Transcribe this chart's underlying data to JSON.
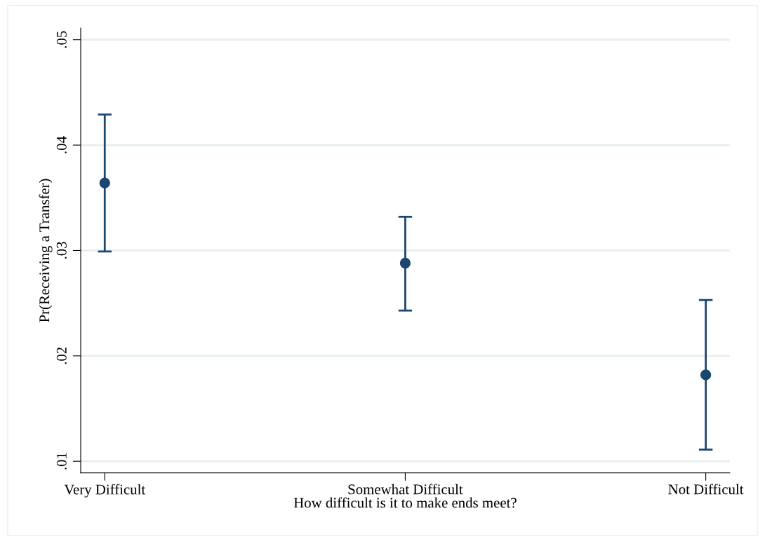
{
  "chart_data": {
    "type": "scatter",
    "xlabel": "How difficult is it to make ends meet?",
    "ylabel": "Pr(Receiving a Transfer)",
    "categories": [
      "Very Difficult",
      "Somewhat Difficult",
      "Not Difficult"
    ],
    "series": [
      {
        "color": "#1a476f",
        "values": [
          0.0364,
          0.0288,
          0.0182
        ],
        "errors": [
          [
            0.0299,
            0.0429
          ],
          [
            0.0243,
            0.0332
          ],
          [
            0.0111,
            0.0253
          ]
        ]
      }
    ],
    "ylim": [
      0.0089,
      0.0511
    ],
    "yticks": [
      {
        "value": 0.01,
        "label": ".01"
      },
      {
        "value": 0.02,
        "label": ".02"
      },
      {
        "value": 0.03,
        "label": ".03"
      },
      {
        "value": 0.04,
        "label": ".04"
      },
      {
        "value": 0.05,
        "label": ".05"
      }
    ],
    "grid": "y",
    "marker": "circle"
  }
}
